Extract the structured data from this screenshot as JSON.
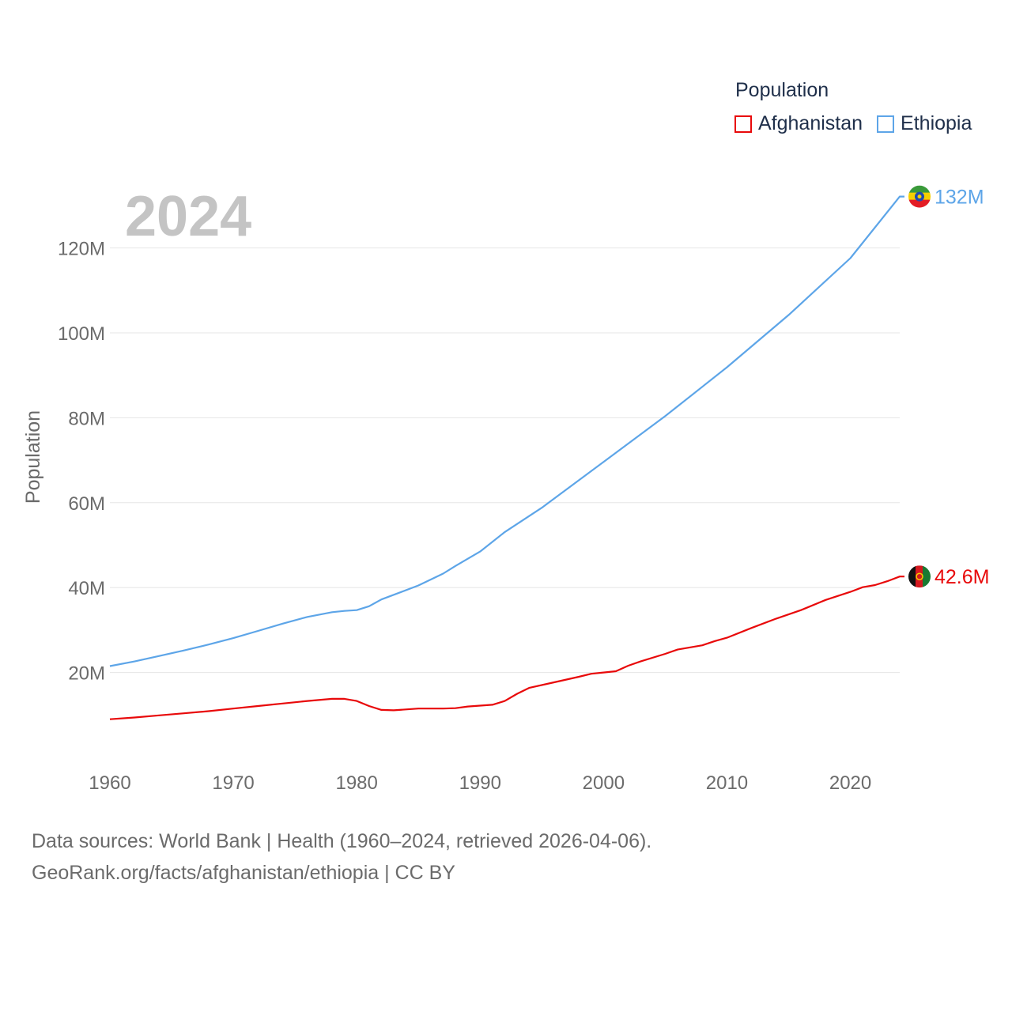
{
  "legend": {
    "title": "Population",
    "items": [
      {
        "name": "Afghanistan",
        "color": "#e8090a"
      },
      {
        "name": "Ethiopia",
        "color": "#5da5e8"
      }
    ]
  },
  "footer": {
    "line1": "Data sources: World Bank | Health (1960–2024, retrieved 2026-04-06).",
    "line2": "GeoRank.org/facts/afghanistan/ethiopia | CC BY"
  },
  "chart_data": {
    "type": "line",
    "title": "Population",
    "year_label": "2024",
    "xlabel": "",
    "ylabel": "Population",
    "xlim": [
      1960,
      2024
    ],
    "ylim": [
      0,
      130000000
    ],
    "x_ticks": [
      1960,
      1970,
      1980,
      1990,
      2000,
      2010,
      2020
    ],
    "x_tick_labels": [
      "1960",
      "1970",
      "1980",
      "1990",
      "2000",
      "2010",
      "2020"
    ],
    "y_ticks": [
      20000000,
      40000000,
      60000000,
      80000000,
      100000000,
      120000000
    ],
    "y_tick_labels": [
      "20M",
      "40M",
      "60M",
      "80M",
      "100M",
      "120M"
    ],
    "grid": true,
    "legend_position": "top-right",
    "series": [
      {
        "name": "Afghanistan",
        "color": "#e8090a",
        "end_label": "42.6M",
        "flag_icon": "afghanistan-flag-icon",
        "x": [
          1960,
          1962,
          1964,
          1966,
          1968,
          1970,
          1972,
          1974,
          1976,
          1978,
          1979,
          1980,
          1981,
          1982,
          1983,
          1985,
          1987,
          1988,
          1989,
          1990,
          1991,
          1992,
          1993,
          1994,
          1996,
          1998,
          1999,
          2001,
          2002,
          2003,
          2005,
          2006,
          2008,
          2009,
          2010,
          2012,
          2014,
          2016,
          2018,
          2020,
          2021,
          2022,
          2023,
          2024
        ],
        "y": [
          9000000,
          9400000,
          9900000,
          10400000,
          10900000,
          11500000,
          12100000,
          12700000,
          13300000,
          13800000,
          13800000,
          13300000,
          12100000,
          11200000,
          11100000,
          11500000,
          11500000,
          11600000,
          12000000,
          12200000,
          12400000,
          13300000,
          15000000,
          16400000,
          17700000,
          19000000,
          19700000,
          20300000,
          21600000,
          22600000,
          24400000,
          25400000,
          26400000,
          27400000,
          28200000,
          30500000,
          32700000,
          34700000,
          37100000,
          39000000,
          40100000,
          40600000,
          41500000,
          42600000
        ]
      },
      {
        "name": "Ethiopia",
        "color": "#5da5e8",
        "end_label": "132M",
        "flag_icon": "ethiopia-flag-icon",
        "x": [
          1960,
          1962,
          1964,
          1966,
          1968,
          1970,
          1972,
          1974,
          1976,
          1978,
          1979,
          1980,
          1981,
          1982,
          1983,
          1985,
          1987,
          1988,
          1990,
          1992,
          1995,
          2000,
          2005,
          2010,
          2015,
          2020,
          2024
        ],
        "y": [
          21500000,
          22600000,
          23900000,
          25200000,
          26600000,
          28100000,
          29800000,
          31500000,
          33100000,
          34200000,
          34500000,
          34700000,
          35600000,
          37200000,
          38300000,
          40500000,
          43300000,
          45100000,
          48500000,
          53100000,
          58800000,
          69600000,
          80400000,
          91900000,
          104200000,
          117600000,
          132100000
        ]
      }
    ]
  }
}
